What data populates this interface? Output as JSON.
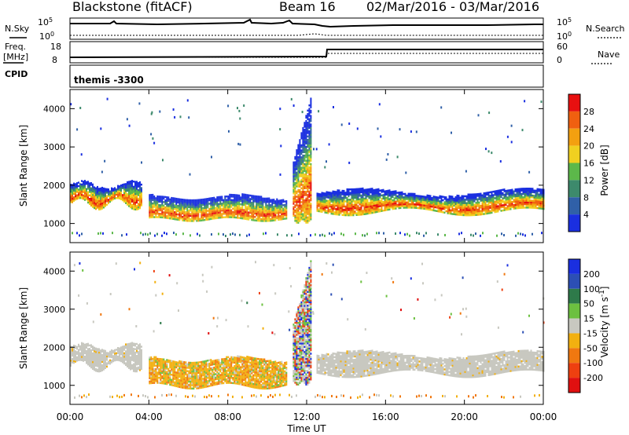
{
  "header": {
    "station": "Blackstone (fitACF)",
    "beam": "Beam 16",
    "dates": "02/Mar/2016 - 03/Mar/2016"
  },
  "summary": {
    "nsky_label": "N.Sky",
    "nsky_ticks": [
      "10^5",
      "10^0"
    ],
    "nsearch_label": "N.Search",
    "nsearch_ticks": [
      "10^5",
      "10^0"
    ],
    "freq_label_1": "Freq.",
    "freq_label_2": "[MHz]",
    "freq_ticks": [
      "18",
      "8"
    ],
    "nave_label": "Nave",
    "nave_ticks": [
      "60",
      "0"
    ],
    "cpid_label": "CPID",
    "cpid_value": "themis -3300"
  },
  "colors": {
    "power_scale": [
      "#1a2fe0",
      "#3060a8",
      "#3d8a6c",
      "#5cb84a",
      "#f0d020",
      "#f3a010",
      "#f06010",
      "#e81010"
    ],
    "velocity_scale": [
      "#1a2fe0",
      "#2c4fb5",
      "#2e7a4a",
      "#6cc040",
      "#c8c8c0",
      "#f2b010",
      "#f07810",
      "#ee4010",
      "#e01010"
    ],
    "velocity_gray": "#c8c8c0"
  },
  "chart_data": [
    {
      "type": "heatmap",
      "title": "Power",
      "xlabel": "Time UT",
      "ylabel": "Slant Range [km]",
      "xticks": [
        "00:00",
        "04:00",
        "08:00",
        "12:00",
        "16:00",
        "20:00",
        "00:00"
      ],
      "yticks": [
        "1000",
        "2000",
        "3000",
        "4000"
      ],
      "ylim": [
        500,
        4500
      ],
      "xlim_hours": [
        0,
        24
      ],
      "colorbar_label": "Power [dB]",
      "colorbar_ticks": [
        "28",
        "24",
        "20",
        "16",
        "12",
        "8",
        "4"
      ],
      "bands": [
        {
          "x_start": 0.0,
          "x_end": 3.6,
          "y_lo": [
            1350,
            1650
          ],
          "y_hi": [
            1900,
            2100
          ]
        },
        {
          "x_start": 4.0,
          "x_end": 11.0,
          "y_lo": [
            1050,
            1150
          ],
          "y_hi": [
            1600,
            1750
          ]
        },
        {
          "x_start": 11.3,
          "x_end": 12.2,
          "y_lo": [
            1000,
            1100
          ],
          "y_hi": [
            2600,
            4300
          ]
        },
        {
          "x_start": 12.5,
          "x_end": 24.0,
          "y_lo": [
            1200,
            1400
          ],
          "y_hi": [
            1700,
            1900
          ]
        }
      ]
    },
    {
      "type": "heatmap",
      "title": "Velocity",
      "xlabel": "Time UT",
      "ylabel": "Slant Range [km]",
      "xticks": [
        "00:00",
        "04:00",
        "08:00",
        "12:00",
        "16:00",
        "20:00",
        "00:00"
      ],
      "yticks": [
        "1000",
        "2000",
        "3000",
        "4000"
      ],
      "ylim": [
        500,
        4500
      ],
      "xlim_hours": [
        0,
        24
      ],
      "colorbar_label": "Velocity [m s^-1]",
      "colorbar_ticks": [
        "200",
        "100",
        "50",
        "15",
        "-15",
        "-50",
        "-100",
        "-200"
      ],
      "bands": [
        {
          "x_start": 0.0,
          "x_end": 3.6,
          "y_lo": [
            1350,
            1650
          ],
          "y_hi": [
            1900,
            2100
          ],
          "velocity": "gray"
        },
        {
          "x_start": 4.0,
          "x_end": 11.0,
          "y_lo": [
            900,
            1050
          ],
          "y_hi": [
            1600,
            1750
          ],
          "velocity": "-50"
        },
        {
          "x_start": 11.3,
          "x_end": 12.2,
          "y_lo": [
            1000,
            1100
          ],
          "y_hi": [
            2600,
            4300
          ],
          "velocity": "mixed"
        },
        {
          "x_start": 12.5,
          "x_end": 24.0,
          "y_lo": [
            1200,
            1400
          ],
          "y_hi": [
            1700,
            1900
          ],
          "velocity": "gray"
        }
      ]
    }
  ]
}
